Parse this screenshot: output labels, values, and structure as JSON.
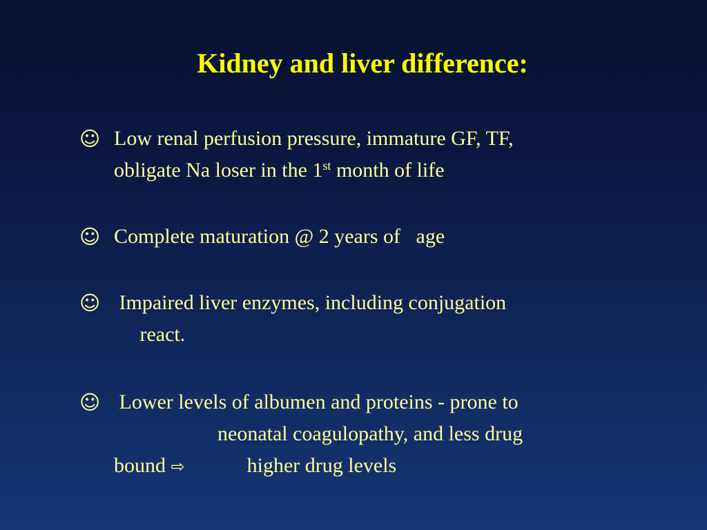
{
  "slide": {
    "title": "Kidney and liver difference:",
    "bullet_symbol": "☺",
    "arrow_symbol": "⇨",
    "bullets": [
      {
        "line1": "Low renal perfusion pressure, immature GF, TF,",
        "line2_pre": "obligate Na loser in the 1",
        "line2_sup": "st",
        "line2_post": " month of life"
      },
      {
        "line1": "Complete maturation @ 2 years of   age"
      },
      {
        "line1": " Impaired liver enzymes, including conjugation",
        "line2": "     react."
      },
      {
        "line1": " Lower levels of albumen and proteins - prone to",
        "line2": "                    neonatal coagulopathy, and less drug",
        "line3_pre": "bound ",
        "line3_post": "            higher drug levels"
      }
    ]
  }
}
